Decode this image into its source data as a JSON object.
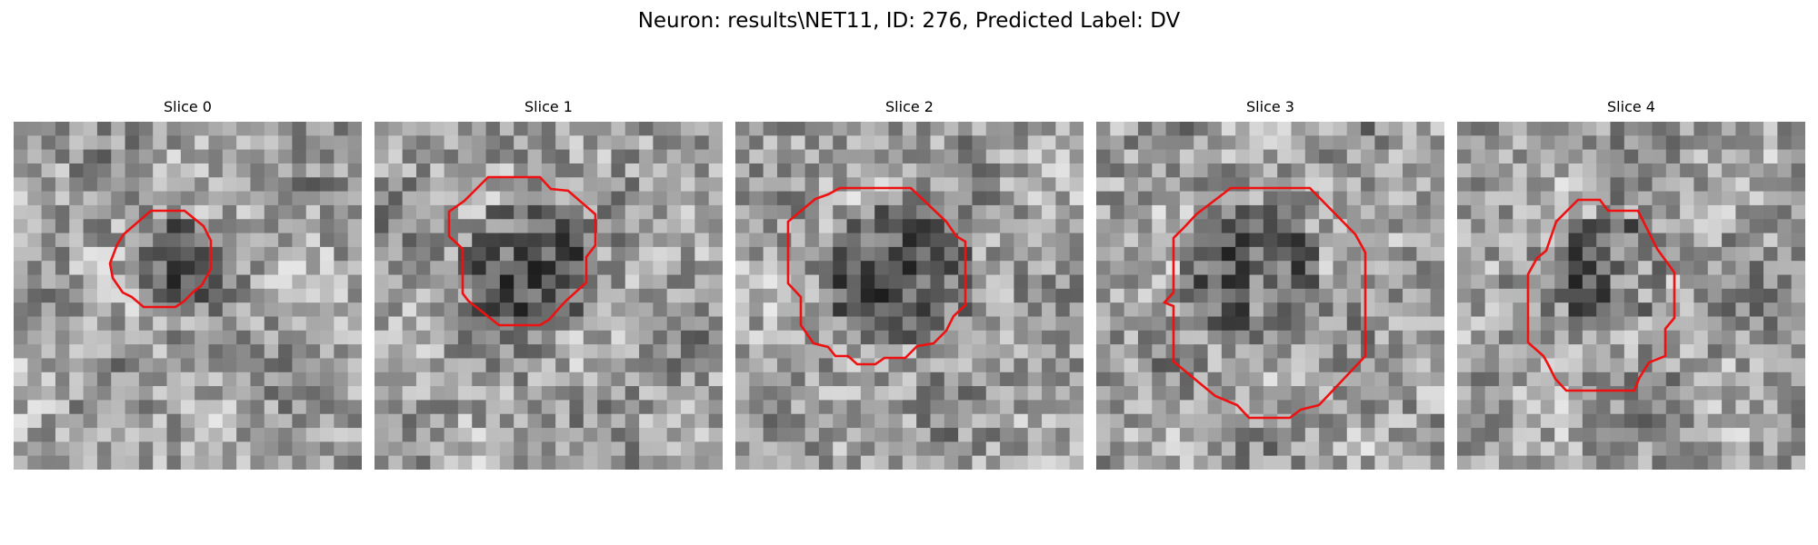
{
  "figure": {
    "title": "Neuron: results\\NET11, ID: 276, Predicted Label: DV"
  },
  "slices": [
    {
      "label": "Slice 0",
      "seed": 11,
      "blob": {
        "cx": 11.5,
        "cy": 10,
        "r": 3.2
      }
    },
    {
      "label": "Slice 1",
      "seed": 23,
      "blob": {
        "cx": 10.5,
        "cy": 10,
        "r": 4.8
      }
    },
    {
      "label": "Slice 2",
      "seed": 37,
      "blob": {
        "cx": 11.5,
        "cy": 10.5,
        "r": 5.2
      }
    },
    {
      "label": "Slice 3",
      "seed": 41,
      "blob": {
        "cx": 10.5,
        "cy": 10.5,
        "r": 4.8,
        "crescent": true
      }
    },
    {
      "label": "Slice 4",
      "seed": 53,
      "blob": {
        "cx": 10.5,
        "cy": 10.5,
        "r": 4.2,
        "crescent": true
      }
    }
  ],
  "colors": {
    "contour": "#ee1111",
    "background": "#ffffff"
  }
}
